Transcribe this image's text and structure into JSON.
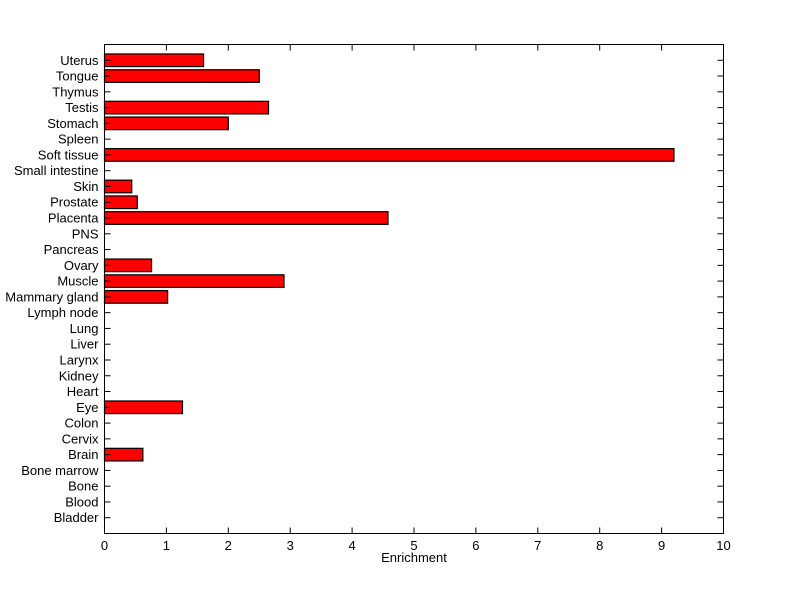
{
  "figure": {
    "background_color": "#ffffff",
    "axis_color": "#000000",
    "text_color": "#000000"
  },
  "chart_data": {
    "type": "bar",
    "orientation": "horizontal",
    "title": "",
    "xlabel": "Enrichment",
    "ylabel": "",
    "xlim": [
      0,
      10
    ],
    "xticks": [
      0,
      1,
      2,
      3,
      4,
      5,
      6,
      7,
      8,
      9,
      10
    ],
    "grid": false,
    "legend": null,
    "bar_color": "#ff0000",
    "bar_edge_color": "#000000",
    "categories": [
      "Uterus",
      "Tongue",
      "Thymus",
      "Testis",
      "Stomach",
      "Spleen",
      "Soft tissue",
      "Small intestine",
      "Skin",
      "Prostate",
      "Placenta",
      "PNS",
      "Pancreas",
      "Ovary",
      "Muscle",
      "Mammary gland",
      "Lymph node",
      "Lung",
      "Liver",
      "Larynx",
      "Kidney",
      "Heart",
      "Eye",
      "Colon",
      "Cervix",
      "Brain",
      "Bone marrow",
      "Bone",
      "Blood",
      "Bladder"
    ],
    "values": [
      1.6,
      2.5,
      0,
      2.65,
      2.0,
      0,
      9.2,
      0,
      0.44,
      0.53,
      4.58,
      0,
      0,
      0.76,
      2.9,
      1.02,
      0,
      0,
      0,
      0,
      0,
      0,
      1.26,
      0,
      0,
      0.62,
      0,
      0,
      0,
      0
    ]
  }
}
